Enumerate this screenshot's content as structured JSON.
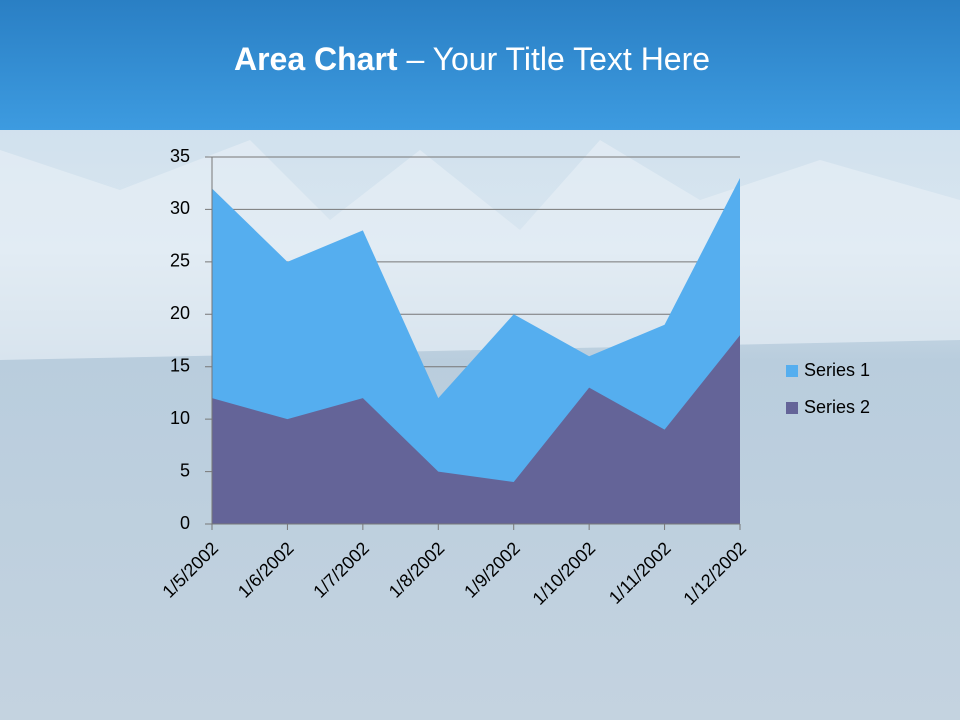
{
  "chart_data": {
    "type": "area",
    "title": {
      "bold": "Area Chart",
      "rest": "– Your Title Text Here"
    },
    "categories": [
      "1/5/2002",
      "1/6/2002",
      "1/7/2002",
      "1/8/2002",
      "1/9/2002",
      "1/10/2002",
      "1/11/2002",
      "1/12/2002"
    ],
    "series": [
      {
        "name": "Series 1",
        "color": "#55aeef",
        "values": [
          32,
          25,
          28,
          12,
          20,
          16,
          19,
          33
        ]
      },
      {
        "name": "Series 2",
        "color": "#646498",
        "values": [
          12,
          10,
          12,
          5,
          4,
          13,
          9,
          18
        ]
      }
    ],
    "ylim": [
      0,
      35
    ],
    "yticks": [
      0,
      5,
      10,
      15,
      20,
      25,
      30,
      35
    ],
    "grid": true,
    "legend": "right"
  }
}
